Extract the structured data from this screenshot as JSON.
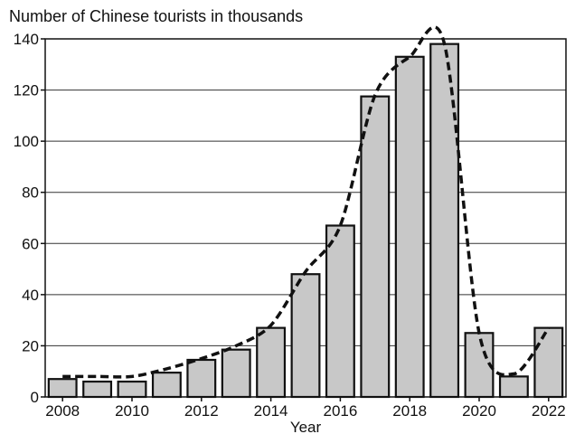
{
  "chart_data": {
    "type": "bar",
    "title": "Number of Chinese tourists in thousands",
    "xlabel": "Year",
    "ylabel": "",
    "ylim": [
      0,
      140
    ],
    "yticks": [
      0,
      20,
      40,
      60,
      80,
      100,
      120,
      140
    ],
    "categories": [
      "2008",
      "2009",
      "2010",
      "2011",
      "2012",
      "2013",
      "2014",
      "2015",
      "2016",
      "2017",
      "2018",
      "2019",
      "2020",
      "2021",
      "2022"
    ],
    "x_tick_labels": [
      "2008",
      "2010",
      "2012",
      "2014",
      "2016",
      "2018",
      "2020",
      "2022"
    ],
    "series": [
      {
        "type": "bar",
        "values": [
          7,
          6,
          6,
          9.5,
          14.5,
          18.5,
          27,
          48,
          67,
          117.5,
          133,
          138,
          25,
          8,
          27
        ]
      },
      {
        "type": "line",
        "style": "dashed",
        "values": [
          8,
          8,
          8,
          11,
          15,
          20,
          28,
          49,
          67,
          118,
          133,
          138,
          25,
          9,
          27
        ]
      }
    ],
    "grid": "horizontal",
    "colors": {
      "bar_fill": "#c8c8c8",
      "bar_stroke": "#111111",
      "line": "#111111",
      "grid": "#333333"
    }
  }
}
